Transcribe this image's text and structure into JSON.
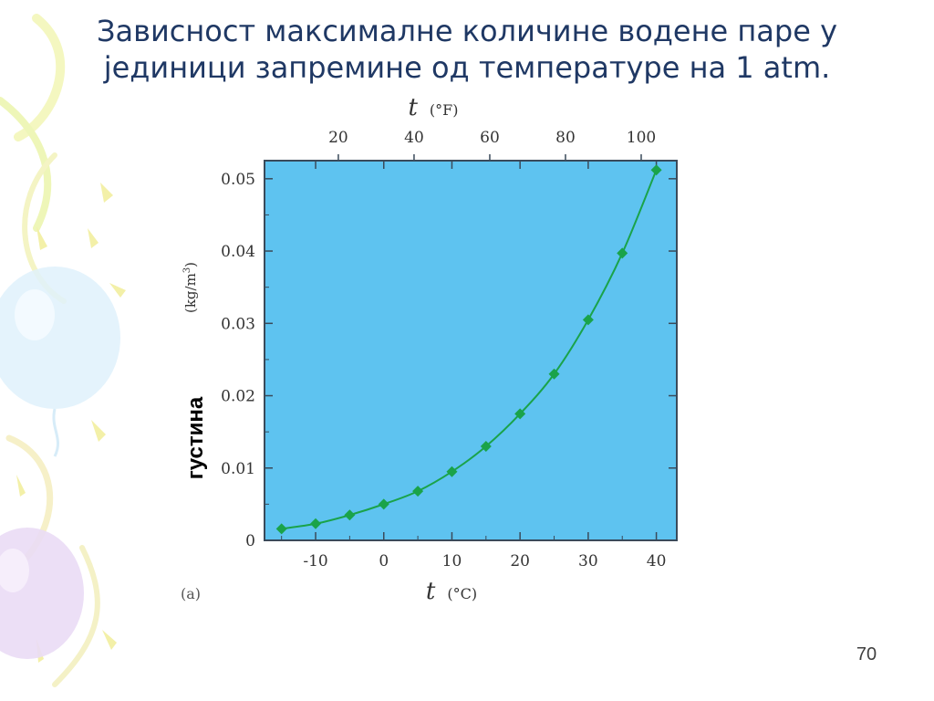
{
  "slide": {
    "title_line1": "Зависност максималне количине водене паре у",
    "title_line2": "јединици запремине од температуре на 1 atm.",
    "page_number": "70"
  },
  "colors": {
    "title": "#1f3864",
    "plot_background": "#5ec3f0",
    "series": "#1aa34a"
  },
  "chart_data": {
    "type": "line",
    "panel_label": "(a)",
    "x_top_label": "t",
    "x_top_unit": "(°F)",
    "x_top_ticks": [
      "20",
      "40",
      "60",
      "80",
      "100"
    ],
    "x_top_tick_values_F": [
      20,
      40,
      60,
      80,
      100
    ],
    "xlabel": "t",
    "xlabel_unit": "(°C)",
    "x_ticks": [
      "-10",
      "0",
      "10",
      "20",
      "30",
      "40"
    ],
    "x_tick_values": [
      -10,
      0,
      10,
      20,
      30,
      40
    ],
    "xlim": [
      -17.5,
      43
    ],
    "ylabel": "густина",
    "ylabel_unit": "(kg/m",
    "ylabel_unit_sup": "3",
    "ylabel_unit_close": ")",
    "y_ticks": [
      "0",
      "0.01",
      "0.02",
      "0.03",
      "0.04",
      "0.05"
    ],
    "y_tick_values": [
      0,
      0.01,
      0.02,
      0.03,
      0.04,
      0.05
    ],
    "ylim": [
      0,
      0.0525
    ],
    "grid": false,
    "series": [
      {
        "x": [
          -15,
          -10,
          -5,
          0,
          5,
          10,
          15,
          20,
          25,
          30,
          35,
          40
        ],
        "values": [
          0.0016,
          0.0023,
          0.0035,
          0.005,
          0.0068,
          0.0095,
          0.013,
          0.0175,
          0.023,
          0.0305,
          0.0397,
          0.0512
        ]
      }
    ]
  }
}
